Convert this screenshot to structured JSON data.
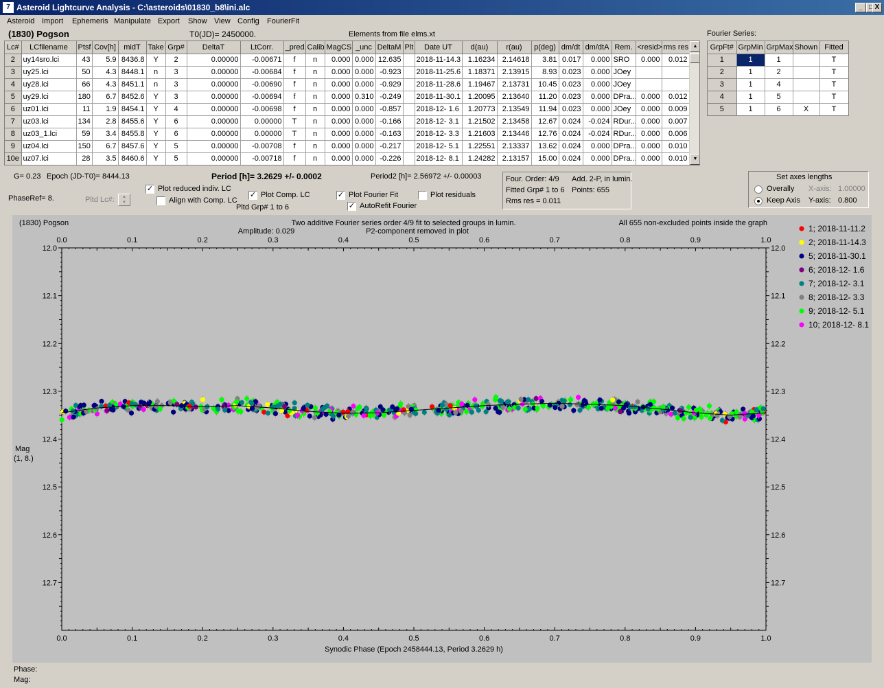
{
  "window": {
    "title": "Asteroid Lightcurve Analysis - C:\\asteroids\\01830_b8\\ini.alc",
    "icon": "app-icon",
    "minimize": "_",
    "maximize": "□",
    "close": "X"
  },
  "menu": [
    "Asteroid",
    "Import",
    "Ephemeris",
    "Manipulate",
    "Export",
    "Show",
    "View",
    "Config",
    "FourierFit"
  ],
  "header": {
    "asteroid": "(1830) Pogson",
    "t0": "T0(JD)= 2450000.",
    "elements": "Elements from file elms.xt",
    "fourier_series_label": "Fourier Series:"
  },
  "lc_table": {
    "columns": [
      "Lc#",
      "LCfilename",
      "Ptsf",
      "Cov[h]",
      "midT",
      "Take",
      "Grp#",
      "DeltaT",
      "LtCorr.",
      "_pred.",
      "Calib.",
      "MagCS",
      "_unc",
      "DeltaM",
      "Plt",
      "Date UT",
      "d(au)",
      "r(au)",
      "p(deg)",
      "dm/dt",
      "dm/dtA",
      "Rem.",
      "<resid>",
      "rms res"
    ],
    "rows": [
      [
        "2",
        "uy14sro.lci",
        "43",
        "5.9",
        "8436.8",
        "Y",
        "2",
        "0.00000",
        "-0.00671",
        "f",
        "n",
        "0.000",
        "0.000",
        "12.635",
        "",
        "2018-11-14.3",
        "1.16234",
        "2.14618",
        "3.81",
        "0.017",
        "0.000",
        "SRO",
        "0.000",
        "0.012"
      ],
      [
        "3",
        "uy25.lci",
        "50",
        "4.3",
        "8448.1",
        "n",
        "3",
        "0.00000",
        "-0.00684",
        "f",
        "n",
        "0.000",
        "0.000",
        "-0.923",
        "",
        "2018-11-25.6",
        "1.18371",
        "2.13915",
        "8.93",
        "0.023",
        "0.000",
        "JOey",
        "",
        ""
      ],
      [
        "4",
        "uy28.lci",
        "66",
        "4.3",
        "8451.1",
        "n",
        "3",
        "0.00000",
        "-0.00690",
        "f",
        "n",
        "0.000",
        "0.000",
        "-0.929",
        "",
        "2018-11-28.6",
        "1.19467",
        "2.13731",
        "10.45",
        "0.023",
        "0.000",
        "JOey",
        "",
        ""
      ],
      [
        "5",
        "uy29.lci",
        "180",
        "6.7",
        "8452.6",
        "Y",
        "3",
        "0.00000",
        "-0.00694",
        "f",
        "n",
        "0.000",
        "0.310",
        "-0.249",
        "",
        "2018-11-30.1",
        "1.20095",
        "2.13640",
        "11.20",
        "0.023",
        "0.000",
        "DPra...",
        "0.000",
        "0.012"
      ],
      [
        "6",
        "uz01.lci",
        "11",
        "1.9",
        "8454.1",
        "Y",
        "4",
        "0.00000",
        "-0.00698",
        "f",
        "n",
        "0.000",
        "0.000",
        "-0.857",
        "",
        "2018-12- 1.6",
        "1.20773",
        "2.13549",
        "11.94",
        "0.023",
        "0.000",
        "JOey",
        "0.000",
        "0.009"
      ],
      [
        "7",
        "uz03.lci",
        "134",
        "2.8",
        "8455.6",
        "Y",
        "6",
        "0.00000",
        "0.00000",
        "T",
        "n",
        "0.000",
        "0.000",
        "-0.166",
        "",
        "2018-12- 3.1",
        "1.21502",
        "2.13458",
        "12.67",
        "0.024",
        "-0.024",
        "RDur...",
        "0.000",
        "0.007"
      ],
      [
        "8",
        "uz03_1.lci",
        "59",
        "3.4",
        "8455.8",
        "Y",
        "6",
        "0.00000",
        "0.00000",
        "T",
        "n",
        "0.000",
        "0.000",
        "-0.163",
        "",
        "2018-12- 3.3",
        "1.21603",
        "2.13446",
        "12.76",
        "0.024",
        "-0.024",
        "RDur...",
        "0.000",
        "0.006"
      ],
      [
        "9",
        "uz04.lci",
        "150",
        "6.7",
        "8457.6",
        "Y",
        "5",
        "0.00000",
        "-0.00708",
        "f",
        "n",
        "0.000",
        "0.000",
        "-0.217",
        "",
        "2018-12- 5.1",
        "1.22551",
        "2.13337",
        "13.62",
        "0.024",
        "0.000",
        "DPra...",
        "0.000",
        "0.010"
      ],
      [
        "10e",
        "uz07.lci",
        "28",
        "3.5",
        "8460.6",
        "Y",
        "5",
        "0.00000",
        "-0.00718",
        "f",
        "n",
        "0.000",
        "0.000",
        "-0.226",
        "",
        "2018-12- 8.1",
        "1.24282",
        "2.13157",
        "15.00",
        "0.024",
        "0.000",
        "DPra...",
        "0.000",
        "0.010"
      ]
    ]
  },
  "fourier_table": {
    "columns": [
      "GrpFt#",
      "GrpMin",
      "GrpMax",
      "Shown",
      "Fitted"
    ],
    "rows": [
      [
        "1",
        "1",
        "1",
        "",
        "T"
      ],
      [
        "2",
        "1",
        "2",
        "",
        "T"
      ],
      [
        "3",
        "1",
        "4",
        "",
        "T"
      ],
      [
        "4",
        "1",
        "5",
        "",
        "T"
      ],
      [
        "5",
        "1",
        "6",
        "X",
        "T"
      ]
    ]
  },
  "controls": {
    "g": "G= 0.23",
    "epoch": "Epoch (JD-T0)= 8444.13",
    "phase_ref": "PhaseRef= 8.",
    "pltd_lc": "Pltd Lc#:",
    "period": "Period [h]= 3.2629 +/- 0.0002",
    "period2": "Period2 [h]= 2.56972 +/- 0.00003",
    "plot_reduced": "Plot reduced indiv. LC",
    "align_comp": "Align with Comp. LC",
    "plot_comp": "Plot Comp. LC",
    "pltd_grp": "Pltd Grp#  1   to    6",
    "plot_fourier": "Plot Fourier Fit",
    "autorefit": "AutoRefit Fourier",
    "plot_residuals": "Plot residuals",
    "check": "✓",
    "spin_up": "▲",
    "spin_down": "▼"
  },
  "fit_info": {
    "order": "Four. Order:  4/9",
    "add": "Add. 2-P, in lumin.",
    "fitted_grp": "Fitted Grp# 1 to 6",
    "points": "Points: 655",
    "rms": "Rms res      = 0.011"
  },
  "axes_box": {
    "title": "Set axes lengths",
    "overally": "Overally",
    "keep_axis": "Keep Axis",
    "x_axis_label": "X-axis:",
    "x_axis_value": "1.00000",
    "y_axis_label": "Y-axis:",
    "y_axis_value": "0.800"
  },
  "footer": {
    "phase": "Phase:",
    "mag": "Mag:"
  },
  "chart_data": {
    "type": "scatter",
    "title": "Two additive Fourier series order 4/9 fit to selected groups in lumin.",
    "subtitle": "Amplitude: 0.029",
    "subtitle2": "P2-component removed in plot",
    "corner_left": "(1830) Pogson",
    "corner_right": "All 655 non-excluded points inside the graph",
    "xlabel": "Synodic Phase (Epoch 2458444.13, Period 3.2629 h)",
    "ylabel": "Mag",
    "ylabel2": "(1, 8.)",
    "xlim": [
      0.0,
      1.0
    ],
    "ylim": [
      12.0,
      12.8
    ],
    "y_inverted": true,
    "x_ticks": [
      "0.0",
      "0.1",
      "0.2",
      "0.3",
      "0.4",
      "0.5",
      "0.6",
      "0.7",
      "0.8",
      "0.9",
      "1.0"
    ],
    "y_ticks": [
      "12.0",
      "12.1",
      "12.2",
      "12.3",
      "12.4",
      "12.5",
      "12.6",
      "12.7"
    ],
    "grid": false,
    "legend_position": "right",
    "series": [
      {
        "name": "1; 2018-11-11.2",
        "color": "#ff0000"
      },
      {
        "name": "2; 2018-11-14.3",
        "color": "#ffff00"
      },
      {
        "name": "5; 2018-11-30.1",
        "color": "#000080"
      },
      {
        "name": "6; 2018-12- 1.6",
        "color": "#800080"
      },
      {
        "name": "7; 2018-12- 3.1",
        "color": "#008080"
      },
      {
        "name": "8; 2018-12- 3.3",
        "color": "#808080"
      },
      {
        "name": "9; 2018-12- 5.1",
        "color": "#00ff00"
      },
      {
        "name": "10; 2018-12- 8.1",
        "color": "#ff00ff"
      }
    ],
    "fit_curve": {
      "x": [
        0.0,
        0.05,
        0.1,
        0.15,
        0.2,
        0.25,
        0.3,
        0.35,
        0.4,
        0.45,
        0.5,
        0.55,
        0.6,
        0.65,
        0.7,
        0.75,
        0.8,
        0.85,
        0.9,
        0.95,
        1.0
      ],
      "y": [
        12.345,
        12.335,
        12.33,
        12.33,
        12.332,
        12.33,
        12.335,
        12.342,
        12.346,
        12.345,
        12.34,
        12.335,
        12.33,
        12.327,
        12.325,
        12.327,
        12.33,
        12.337,
        12.345,
        12.35,
        12.345
      ]
    }
  }
}
